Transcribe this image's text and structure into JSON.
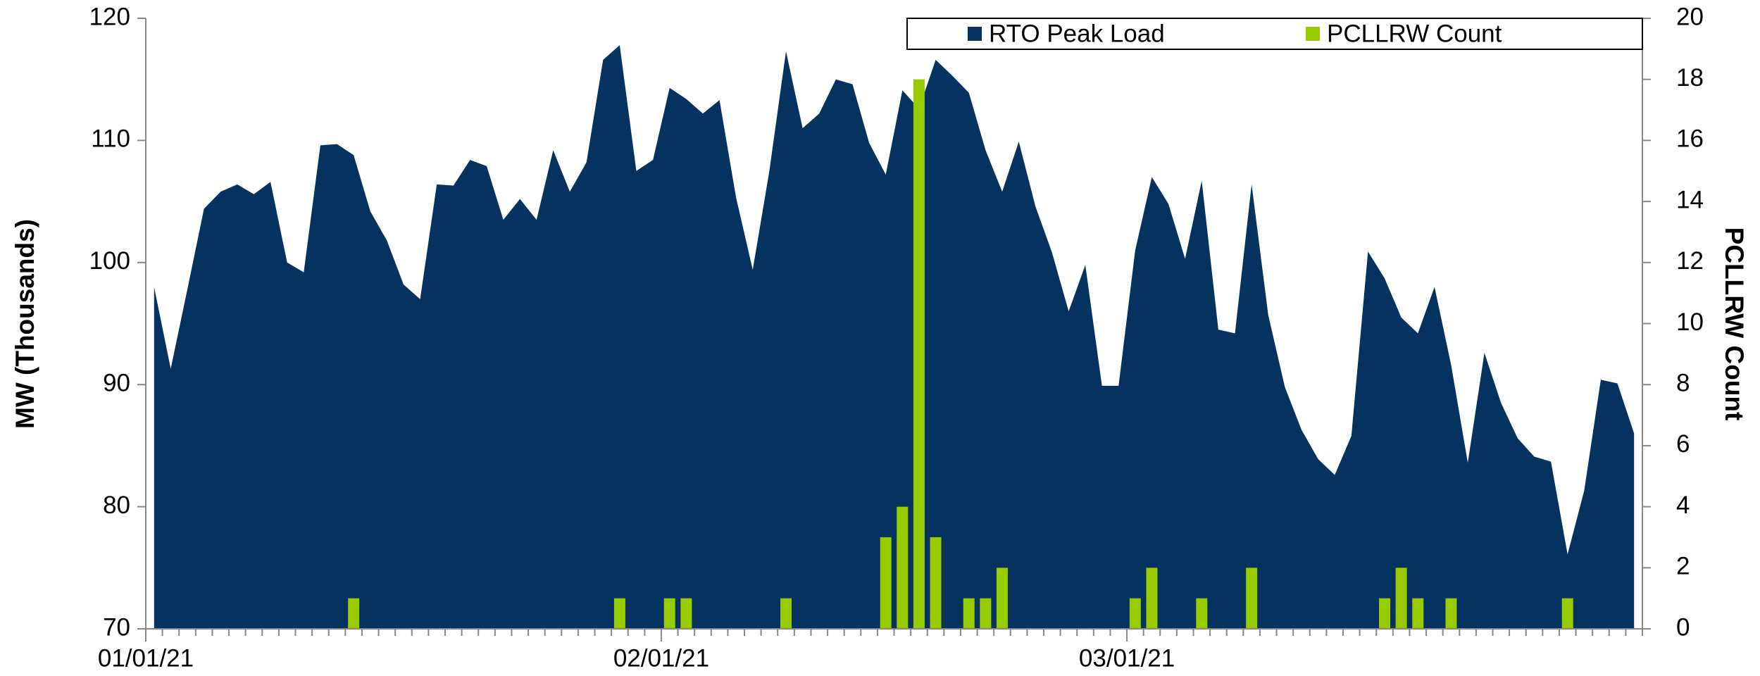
{
  "chart_data": {
    "type": "area",
    "y_label": "MW (Thousands)",
    "y2_label": "PCLLRW Count",
    "categories": [
      "01/01/21",
      null,
      null,
      null,
      null,
      null,
      null,
      null,
      null,
      null,
      null,
      null,
      null,
      null,
      null,
      null,
      null,
      null,
      null,
      null,
      null,
      null,
      null,
      null,
      null,
      null,
      null,
      null,
      null,
      null,
      null,
      "02/01/21",
      null,
      null,
      null,
      null,
      null,
      null,
      null,
      null,
      null,
      null,
      null,
      null,
      null,
      null,
      null,
      null,
      null,
      null,
      null,
      null,
      null,
      null,
      null,
      null,
      null,
      null,
      null,
      "03/01/21",
      null,
      null,
      null,
      null,
      null,
      null,
      null,
      null,
      null,
      null,
      null,
      null,
      null,
      null,
      null,
      null,
      null,
      null,
      null,
      null,
      null,
      null,
      null,
      null,
      null,
      null,
      null,
      null,
      null,
      null
    ],
    "series": [
      {
        "name": "RTO Peak Load",
        "type": "area",
        "color": "#05325f",
        "values": [
          98,
          91.3,
          97.8,
          104.4,
          105.8,
          106.4,
          105.6,
          106.6,
          100,
          99.2,
          109.6,
          109.7,
          108.8,
          104.2,
          101.8,
          98.2,
          97,
          106.4,
          106.3,
          108.4,
          107.9,
          103.5,
          105.2,
          103.5,
          109.2,
          105.8,
          108.2,
          116.6,
          117.8,
          107.5,
          108.4,
          114.3,
          113.4,
          112.2,
          113.3,
          105.3,
          99.4,
          107.5,
          117.3,
          111,
          112.2,
          115,
          114.6,
          109.8,
          107.2,
          114.1,
          112.6,
          116.6,
          115.3,
          113.9,
          109.2,
          105.8,
          109.9,
          104.6,
          100.8,
          96,
          99.8,
          89.9,
          89.9,
          101,
          107,
          104.8,
          100.3,
          106.7,
          94.5,
          94.2,
          106.4,
          95.7,
          89.8,
          86.3,
          83.9,
          82.6,
          85.8,
          100.9,
          98.7,
          95.5,
          94.2,
          98,
          91.6,
          83.6,
          92.6,
          88.5,
          85.6,
          84.1,
          83.7,
          76.1,
          81.3,
          90.4,
          90.1,
          86
        ]
      },
      {
        "name": "PCLLRW Count",
        "type": "bar",
        "axis": "y2",
        "color": "#99cc00",
        "values": [
          0,
          0,
          0,
          0,
          0,
          0,
          0,
          0,
          0,
          0,
          0,
          0,
          1,
          0,
          0,
          0,
          0,
          0,
          0,
          0,
          0,
          0,
          0,
          0,
          0,
          0,
          0,
          0,
          1,
          0,
          0,
          1,
          1,
          0,
          0,
          0,
          0,
          0,
          1,
          0,
          0,
          0,
          0,
          0,
          3,
          4,
          18,
          3,
          0,
          1,
          1,
          2,
          0,
          0,
          0,
          0,
          0,
          0,
          0,
          1,
          2,
          0,
          0,
          1,
          0,
          0,
          2,
          0,
          0,
          0,
          0,
          0,
          0,
          0,
          1,
          2,
          1,
          0,
          1,
          0,
          0,
          0,
          0,
          0,
          0,
          1,
          0,
          0,
          0,
          0
        ]
      }
    ],
    "ylim": [
      70,
      120
    ],
    "yticks": [
      70,
      80,
      90,
      100,
      110,
      120
    ],
    "y2lim": [
      0,
      20
    ],
    "y2ticks": [
      0,
      2,
      4,
      6,
      8,
      10,
      12,
      14,
      16,
      18,
      20
    ],
    "grid": false,
    "legend": "top-right"
  }
}
